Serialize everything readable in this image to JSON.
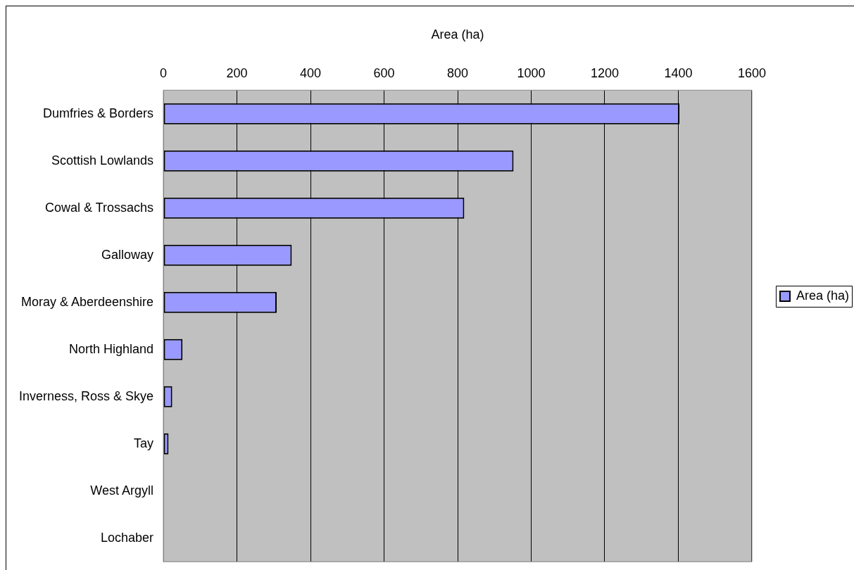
{
  "chart_data": {
    "type": "bar",
    "orientation": "horizontal",
    "xlabel": "Area (ha)",
    "categories": [
      "Dumfries & Borders",
      "Scottish Lowlands",
      "Cowal & Trossachs",
      "Galloway",
      "Moray & Aberdeenshire",
      "North Highland",
      "Inverness, Ross & Skye",
      "Tay",
      "West Argyll",
      "Lochaber"
    ],
    "series": [
      {
        "name": "Area (ha)",
        "color": "#9999ff",
        "values": [
          1403,
          952,
          818,
          349,
          308,
          52,
          24,
          14,
          0,
          0
        ]
      }
    ],
    "xlim": [
      0,
      1600
    ],
    "xticks": [
      0,
      200,
      400,
      600,
      800,
      1000,
      1200,
      1400,
      1600
    ],
    "grid": "x",
    "legend": "right"
  }
}
